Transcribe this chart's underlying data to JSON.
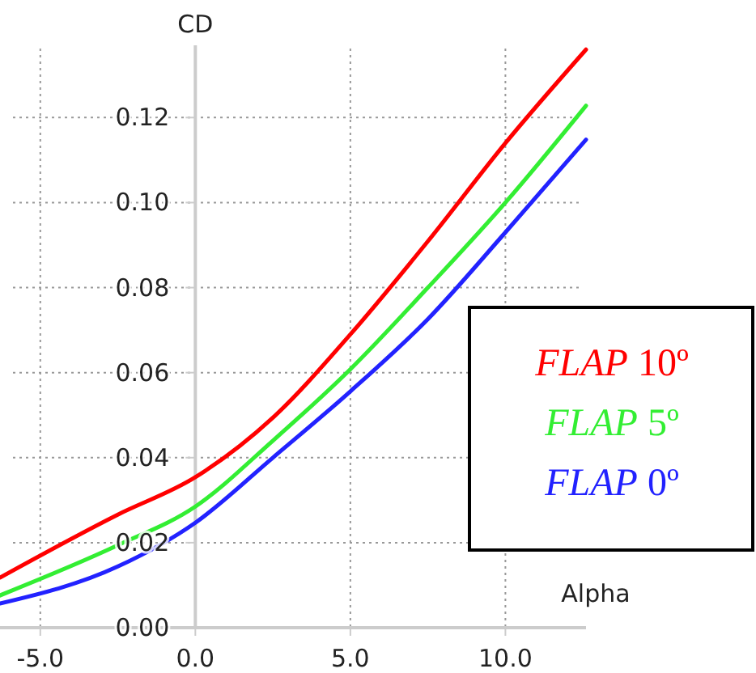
{
  "chart_data": {
    "type": "line",
    "xlabel": "Alpha",
    "ylabel": "CD",
    "x": [
      -6.3,
      -2.5,
      0,
      2.5,
      5,
      7.5,
      10,
      12.6
    ],
    "series": [
      {
        "name": "FLAP 10º",
        "color": "#ff0000",
        "values": [
          0.0118,
          0.0266,
          0.0354,
          0.0494,
          0.069,
          0.0909,
          0.114,
          0.136
        ]
      },
      {
        "name": "FLAP 5º",
        "color": "#33ee33",
        "values": [
          0.0076,
          0.0194,
          0.0285,
          0.044,
          0.0608,
          0.08,
          0.1,
          0.1228
        ]
      },
      {
        "name": "FLAP 0º",
        "color": "#2222ff",
        "values": [
          0.0057,
          0.0144,
          0.0247,
          0.04,
          0.0556,
          0.0726,
          0.093,
          0.1148
        ]
      }
    ],
    "xlim": [
      -6.3,
      12.6
    ],
    "ylim": [
      0,
      0.137
    ],
    "xticks": [
      {
        "value": -5,
        "label": "-5.0"
      },
      {
        "value": 0,
        "label": "0.0"
      },
      {
        "value": 5,
        "label": "5.0"
      },
      {
        "value": 10,
        "label": "10.0"
      }
    ],
    "yticks": [
      {
        "value": 0,
        "label": "0.00"
      },
      {
        "value": 0.02,
        "label": "0.02"
      },
      {
        "value": 0.04,
        "label": "0.04"
      },
      {
        "value": 0.06,
        "label": "0.06"
      },
      {
        "value": 0.08,
        "label": "0.08"
      },
      {
        "value": 0.1,
        "label": "0.10"
      },
      {
        "value": 0.12,
        "label": "0.12"
      }
    ],
    "grid": true,
    "legend": "right",
    "marker": "none",
    "line_style": "solid"
  }
}
